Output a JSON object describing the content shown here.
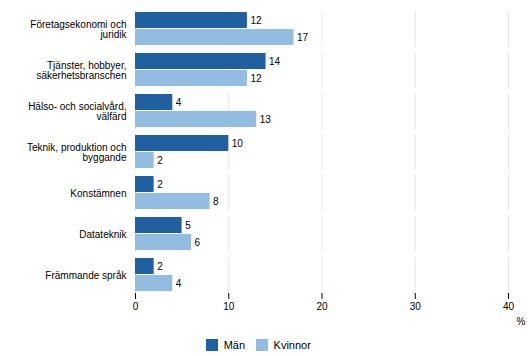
{
  "chart_data": {
    "type": "bar",
    "orientation": "horizontal",
    "categories": [
      "Företagsekonomi och\njuridik",
      "Tjänster, hobbyer,\nsäkerhetsbranschen",
      "Hälso- och socialvård,\nvälfärd",
      "Teknik, produktion och\nbyggande",
      "Konstämnen",
      "Datateknik",
      "Främmande språk"
    ],
    "series": [
      {
        "name": "Män",
        "color": "#2060a0",
        "values": [
          12,
          14,
          4,
          10,
          2,
          5,
          2
        ]
      },
      {
        "name": "Kvinnor",
        "color": "#92bce0",
        "values": [
          17,
          12,
          13,
          2,
          8,
          6,
          4
        ]
      }
    ],
    "x_label": "%",
    "xlim": [
      0,
      40
    ],
    "xticks": [
      0,
      10,
      20,
      30,
      40
    ],
    "grid": true,
    "legend": "bottom",
    "data_labels": true
  }
}
